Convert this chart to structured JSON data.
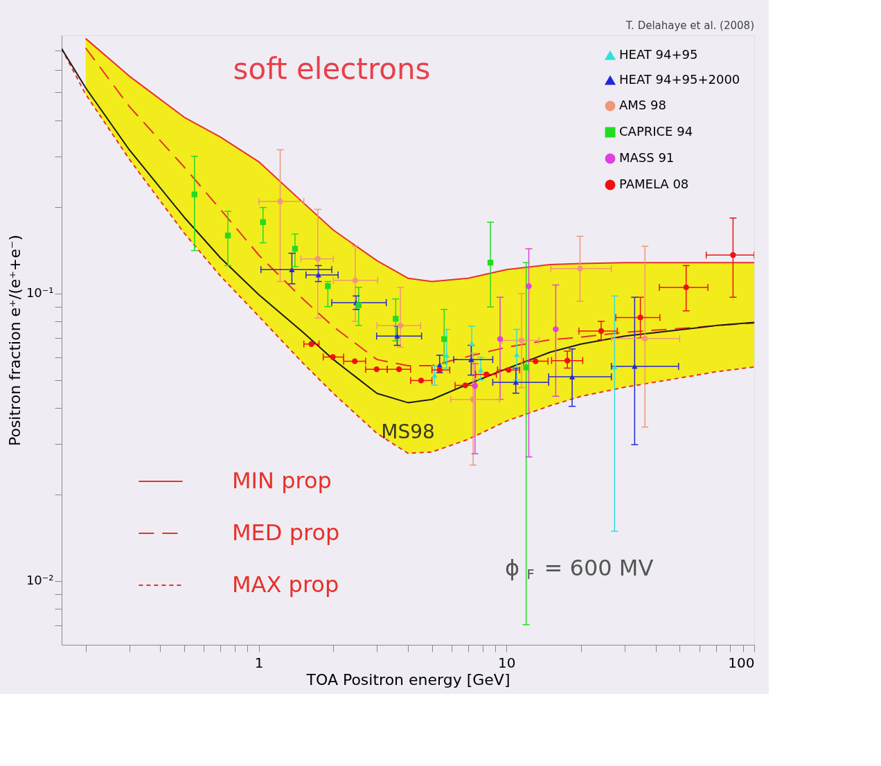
{
  "chart_data": {
    "type": "scatter",
    "title": "soft electrons",
    "xlabel": "TOA Positron energy  [GeV]",
    "ylabel": "Positron fraction e⁺/(e⁺+e⁻)",
    "log": "xy",
    "grid": false,
    "legend": "top right",
    "xlim": [
      0.16,
      100
    ],
    "ylim": [
      0.006,
      0.79
    ],
    "xticks": [
      {
        "value": 0.2,
        "label": null
      },
      {
        "value": 0.3,
        "label": null
      },
      {
        "value": 0.4,
        "label": null
      },
      {
        "value": 0.5,
        "label": null
      },
      {
        "value": 0.6,
        "label": null
      },
      {
        "value": 0.7,
        "label": null
      },
      {
        "value": 0.8,
        "label": null
      },
      {
        "value": 0.9,
        "label": null
      },
      1,
      {
        "value": 2,
        "label": null
      },
      {
        "value": 3,
        "label": null
      },
      {
        "value": 4,
        "label": null
      },
      {
        "value": 5,
        "label": null
      },
      {
        "value": 6,
        "label": null
      },
      {
        "value": 7,
        "label": null
      },
      {
        "value": 8,
        "label": null
      },
      {
        "value": 9,
        "label": null
      },
      10,
      {
        "value": 20,
        "label": null
      },
      {
        "value": 30,
        "label": null
      },
      {
        "value": 40,
        "label": null
      },
      {
        "value": 50,
        "label": null
      },
      {
        "value": 60,
        "label": null
      },
      {
        "value": 70,
        "label": null
      },
      {
        "value": 80,
        "label": null
      },
      {
        "value": 90,
        "label": null
      },
      100
    ],
    "yticks": [
      {
        "value": 0.007,
        "label": null
      },
      {
        "value": 0.008,
        "label": null
      },
      {
        "value": 0.009,
        "label": null
      },
      {
        "value": 0.01,
        "label": "10⁻²"
      },
      {
        "value": 0.02,
        "label": null
      },
      {
        "value": 0.03,
        "label": null
      },
      {
        "value": 0.04,
        "label": null
      },
      {
        "value": 0.05,
        "label": null
      },
      {
        "value": 0.06,
        "label": null
      },
      {
        "value": 0.07,
        "label": null
      },
      {
        "value": 0.08,
        "label": null
      },
      {
        "value": 0.09,
        "label": null
      },
      {
        "value": 0.1,
        "label": "10⁻¹"
      },
      {
        "value": 0.2,
        "label": null
      },
      {
        "value": 0.3,
        "label": null
      },
      {
        "value": 0.4,
        "label": null
      },
      {
        "value": 0.5,
        "label": null
      },
      {
        "value": 0.6,
        "label": null
      },
      {
        "value": 0.7,
        "label": null
      }
    ],
    "annotations": [
      "T. Delahaye et al. (2008)",
      "ϕ$_{F}$ = 600 MV",
      "MS98"
    ],
    "series": [
      {
        "type": "line",
        "name": "MIN prop",
        "color": "#e8302a",
        "line_style": "solid",
        "x": [
          0.2,
          0.3,
          0.5,
          0.7,
          1,
          1.5,
          2,
          3,
          4,
          5,
          7,
          10,
          15,
          20,
          30,
          50,
          70,
          100
        ],
        "values": [
          0.77,
          0.57,
          0.41,
          0.35,
          0.287,
          0.208,
          0.166,
          0.13,
          0.113,
          0.11,
          0.113,
          0.121,
          0.126,
          0.127,
          0.128,
          0.128,
          0.128,
          0.128
        ]
      },
      {
        "type": "line",
        "name": "MED prop",
        "color": "#e8302a",
        "line_style": "dashed",
        "x": [
          0.2,
          0.3,
          0.5,
          0.7,
          1,
          1.5,
          2,
          3,
          4,
          5,
          7,
          10,
          15,
          20,
          30,
          50,
          70,
          100
        ],
        "values": [
          0.714,
          0.447,
          0.275,
          0.196,
          0.136,
          0.096,
          0.0766,
          0.0589,
          0.0561,
          0.0561,
          0.0604,
          0.065,
          0.069,
          0.0705,
          0.0733,
          0.0755,
          0.0773,
          0.0789
        ],
        "lower": [
          0.493,
          0.293,
          0.162,
          0.115,
          0.0833,
          0.0575,
          0.0449,
          0.0326,
          0.0278,
          0.0281,
          0.0311,
          0.036,
          0.0407,
          0.0439,
          0.0472,
          0.0508,
          0.0534,
          0.0555
        ],
        "upper": [
          0.77,
          0.57,
          0.41,
          0.35,
          0.287,
          0.208,
          0.166,
          0.13,
          0.113,
          0.11,
          0.113,
          0.121,
          0.126,
          0.127,
          0.128,
          0.128,
          0.128,
          0.128
        ]
      },
      {
        "type": "line",
        "name": "MAX prop",
        "color": "#e8302a",
        "line_style": "dotted",
        "x": [
          0.16,
          0.2,
          0.3,
          0.5,
          0.7,
          1,
          1.5,
          2,
          3,
          4,
          5,
          7,
          10,
          15,
          20,
          30,
          50,
          70,
          100
        ],
        "values": [
          0.71,
          0.493,
          0.293,
          0.162,
          0.115,
          0.0833,
          0.0575,
          0.0449,
          0.0326,
          0.0278,
          0.0281,
          0.0311,
          0.036,
          0.0407,
          0.0439,
          0.0472,
          0.0508,
          0.0534,
          0.0555
        ]
      },
      {
        "type": "line",
        "color": "#1a1a1a",
        "line_style": "solid",
        "x": [
          0.16,
          0.2,
          0.3,
          0.5,
          0.7,
          1,
          1.5,
          2,
          3,
          4,
          5,
          7,
          10,
          15,
          20,
          30,
          50,
          70,
          100
        ],
        "values": [
          0.71,
          0.519,
          0.316,
          0.184,
          0.133,
          0.099,
          0.0736,
          0.0589,
          0.0449,
          0.0417,
          0.0428,
          0.0484,
          0.0547,
          0.0625,
          0.0667,
          0.0711,
          0.0747,
          0.0773,
          0.0793
        ]
      },
      {
        "type": "scatter",
        "name": "HEAT 94+95",
        "color": "#33dede",
        "marker": "triangle",
        "x": [
          5.12,
          5.73,
          7.24,
          7.87,
          11.0,
          27.3
        ],
        "values": [
          0.0519,
          0.061,
          0.067,
          0.0542,
          0.0613,
          0.0556
        ],
        "errors": [
          [
            0.048,
            0.056
          ],
          [
            0.055,
            0.075
          ],
          [
            0.058,
            0.077
          ],
          [
            0.05,
            0.06
          ],
          [
            0.05,
            0.075
          ],
          [
            0.0149,
            0.098
          ]
        ]
      },
      {
        "type": "scatter",
        "name": "HEAT 94+95+2000",
        "color": "#2424d8",
        "marker": "triangle",
        "x": [
          1.36,
          1.74,
          2.47,
          3.62,
          5.37,
          7.2,
          10.9,
          18.4,
          32.9
        ],
        "values": [
          0.121,
          0.116,
          0.0929,
          0.0711,
          0.0564,
          0.0589,
          0.0491,
          0.0513,
          0.0558
        ],
        "errors": [
          [
            0.108,
            0.138
          ],
          [
            0.11,
            0.125
          ],
          [
            0.088,
            0.098
          ],
          [
            0.066,
            0.077
          ],
          [
            0.053,
            0.061
          ],
          [
            0.052,
            0.066
          ],
          [
            0.045,
            0.055
          ],
          [
            0.0405,
            0.0641
          ],
          [
            0.0298,
            0.097
          ]
        ],
        "xerrors": [
          [
            1.02,
            1.97
          ],
          [
            1.55,
            2.09
          ],
          [
            1.97,
            3.27
          ],
          [
            2.99,
            4.54
          ],
          null,
          [
            6.12,
            8.8
          ],
          [
            8.8,
            14.8
          ],
          [
            14.8,
            26.5
          ],
          [
            26.5,
            49.5
          ]
        ]
      },
      {
        "type": "scatter",
        "name": "AMS 98",
        "color": "#f0967a",
        "marker": "circle",
        "x": [
          1.22,
          1.73,
          2.45,
          3.73,
          7.33,
          11.5,
          19.8,
          36.2
        ],
        "values": [
          0.209,
          0.132,
          0.111,
          0.0773,
          0.0428,
          0.0687,
          0.122,
          0.0697
        ],
        "errors": [
          [
            0.11,
            0.316
          ],
          [
            0.0821,
            0.196
          ],
          [
            0.08,
            0.146
          ],
          [
            0.065,
            0.105
          ],
          [
            0.0253,
            0.062
          ],
          [
            0.047,
            0.1
          ],
          [
            0.094,
            0.158
          ],
          [
            0.0343,
            0.146
          ]
        ],
        "xerrors": [
          [
            1.0,
            1.52
          ],
          [
            1.48,
            2.0
          ],
          [
            2.0,
            3.02
          ],
          [
            3.0,
            4.5
          ],
          [
            5.95,
            9.37
          ],
          [
            9.6,
            13.5
          ],
          [
            15.1,
            26.5
          ],
          [
            26.5,
            50
          ]
        ]
      },
      {
        "type": "scatter",
        "name": "CAPRICE 94",
        "color": "#22dc22",
        "marker": "square",
        "x": [
          0.55,
          0.75,
          1.04,
          1.4,
          1.9,
          2.53,
          3.57,
          5.6,
          8.61,
          12.0
        ],
        "values": [
          0.221,
          0.159,
          0.177,
          0.143,
          0.106,
          0.091,
          0.0817,
          0.0694,
          0.128,
          0.0553
        ],
        "errors": [
          [
            0.141,
            0.3
          ],
          [
            0.125,
            0.193
          ],
          [
            0.15,
            0.199
          ],
          [
            0.124,
            0.161
          ],
          [
            0.09,
            0.11
          ],
          [
            0.0774,
            0.105
          ],
          [
            0.0684,
            0.0957
          ],
          [
            0.057,
            0.088
          ],
          [
            0.0897,
            0.177
          ],
          [
            0.00705,
            0.128
          ]
        ]
      },
      {
        "type": "scatter",
        "name": "MASS 91",
        "color": "#e040e0",
        "marker": "circle",
        "x": [
          7.46,
          9.42,
          12.3,
          15.8
        ],
        "values": [
          0.0477,
          0.0694,
          0.106,
          0.0751
        ],
        "errors": [
          [
            0.0277,
            0.057
          ],
          [
            0.0428,
            0.097
          ],
          [
            0.027,
            0.143
          ],
          [
            0.0439,
            0.107
          ]
        ]
      },
      {
        "type": "scatter",
        "name": "PAMELA 08",
        "color": "#ee1111",
        "marker": "circle",
        "x": [
          1.63,
          1.99,
          2.44,
          2.99,
          3.68,
          4.52,
          5.37,
          6.82,
          8.3,
          10.2,
          13.1,
          17.6,
          24.1,
          34.7,
          53.1,
          82.1
        ],
        "values": [
          0.0667,
          0.0601,
          0.0581,
          0.0545,
          0.0545,
          0.0498,
          0.0542,
          0.0479,
          0.0523,
          0.0542,
          0.0581,
          0.0584,
          0.074,
          0.0825,
          0.105,
          0.136
        ],
        "errors": [
          null,
          null,
          null,
          null,
          null,
          null,
          null,
          null,
          null,
          null,
          null,
          [
            0.055,
            0.063
          ],
          [
            0.069,
            0.08
          ],
          [
            0.07,
            0.097
          ],
          [
            0.087,
            0.125
          ],
          [
            0.097,
            0.183
          ]
        ],
        "xerrors": [
          [
            1.52,
            1.75
          ],
          [
            1.82,
            2.2
          ],
          [
            2.2,
            2.7
          ],
          [
            2.7,
            3.3
          ],
          [
            3.3,
            4.1
          ],
          [
            4.1,
            5.0
          ],
          [
            5.0,
            5.9
          ],
          [
            6.2,
            7.5
          ],
          [
            7.5,
            9.1
          ],
          [
            9.2,
            11.3
          ],
          [
            11.7,
            14.7
          ],
          [
            15.2,
            20.3
          ],
          [
            19.6,
            28
          ],
          [
            27.6,
            41.6
          ],
          [
            41.4,
            65
          ],
          [
            64,
            100
          ]
        ]
      }
    ]
  }
}
